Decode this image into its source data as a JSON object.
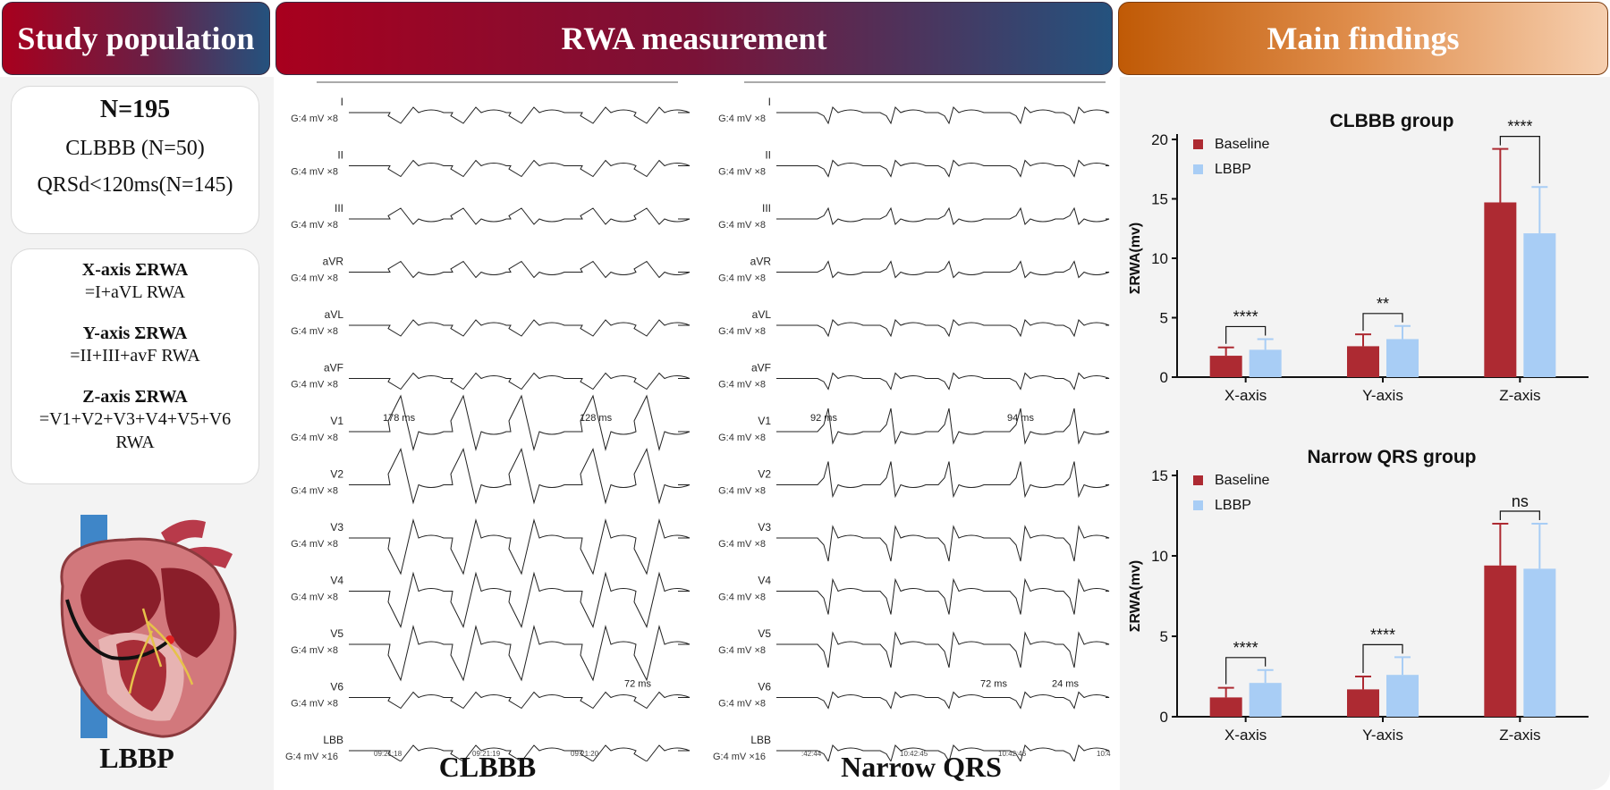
{
  "banners": {
    "study_population": "Study population",
    "rwa_measurement": "RWA measurement",
    "main_findings": "Main findings"
  },
  "population": {
    "total": "N=195",
    "clbbb": "CLBBB (N=50)",
    "narrow": "QRSd<120ms(N=145)"
  },
  "axes": {
    "x_title": "X-axis ΣRWA",
    "x_formula": "=I+aVL RWA",
    "y_title": "Y-axis ΣRWA",
    "y_formula": "=II+III+avF RWA",
    "z_title": "Z-axis ΣRWA",
    "z_formula_1": "=V1+V2+V3+V4+V5+V6",
    "z_formula_2": "RWA"
  },
  "labels": {
    "lbbp": "LBBP",
    "clbbb": "CLBBB",
    "narrow_qrs": "Narrow QRS"
  },
  "ecg": {
    "leads": [
      "I",
      "II",
      "III",
      "aVR",
      "aVL",
      "aVF",
      "V1",
      "V2",
      "V3",
      "V4",
      "V5",
      "V6",
      "LBB"
    ],
    "gain": "G:4 mV ×8",
    "gain_lbb": "G:4 mV ×16",
    "left": {
      "measures": [
        {
          "lead": "V1",
          "text": "178 ms"
        },
        {
          "lead": "V1",
          "text": "128 ms"
        },
        {
          "lead": "V6",
          "text": "72 ms"
        }
      ],
      "times": [
        "09:21:18",
        "09:21:19",
        "09:21:20"
      ]
    },
    "right": {
      "measures": [
        {
          "lead": "V1",
          "text": "92 ms"
        },
        {
          "lead": "V1",
          "text": "94 ms"
        },
        {
          "lead": "V6",
          "text": "24 ms"
        },
        {
          "lead": "V6",
          "text": "72 ms"
        }
      ],
      "times": [
        ":42:44",
        "10:42:45",
        "10:42:46",
        "10:4"
      ]
    }
  },
  "chart_data": [
    {
      "type": "bar",
      "title": "CLBBB group",
      "ylabel": "ΣRWA(mv)",
      "categories": [
        "X-axis",
        "Y-axis",
        "Z-axis"
      ],
      "ylim": [
        0,
        20
      ],
      "yticks": [
        0,
        5,
        10,
        15,
        20
      ],
      "legend_position": "top-left",
      "series": [
        {
          "name": "Baseline",
          "color": "#ad2a32",
          "values": [
            1.8,
            2.6,
            14.7
          ],
          "errors": [
            0.7,
            1.0,
            4.5
          ]
        },
        {
          "name": "LBBP",
          "color": "#a8cdf5",
          "values": [
            2.3,
            3.2,
            12.1
          ],
          "errors": [
            0.9,
            1.1,
            3.9
          ]
        }
      ],
      "significance": [
        "****",
        "**",
        "****"
      ]
    },
    {
      "type": "bar",
      "title": "Narrow QRS group",
      "ylabel": "ΣRWA(mv)",
      "categories": [
        "X-axis",
        "Y-axis",
        "Z-axis"
      ],
      "ylim": [
        0,
        15
      ],
      "yticks": [
        0,
        5,
        10,
        15
      ],
      "legend_position": "top-left",
      "series": [
        {
          "name": "Baseline",
          "color": "#ad2a32",
          "values": [
            1.2,
            1.7,
            9.4
          ],
          "errors": [
            0.6,
            0.8,
            2.6
          ]
        },
        {
          "name": "LBBP",
          "color": "#a8cdf5",
          "values": [
            2.1,
            2.6,
            9.2
          ],
          "errors": [
            0.8,
            1.1,
            2.8
          ]
        }
      ],
      "significance": [
        "****",
        "****",
        "ns"
      ]
    }
  ]
}
